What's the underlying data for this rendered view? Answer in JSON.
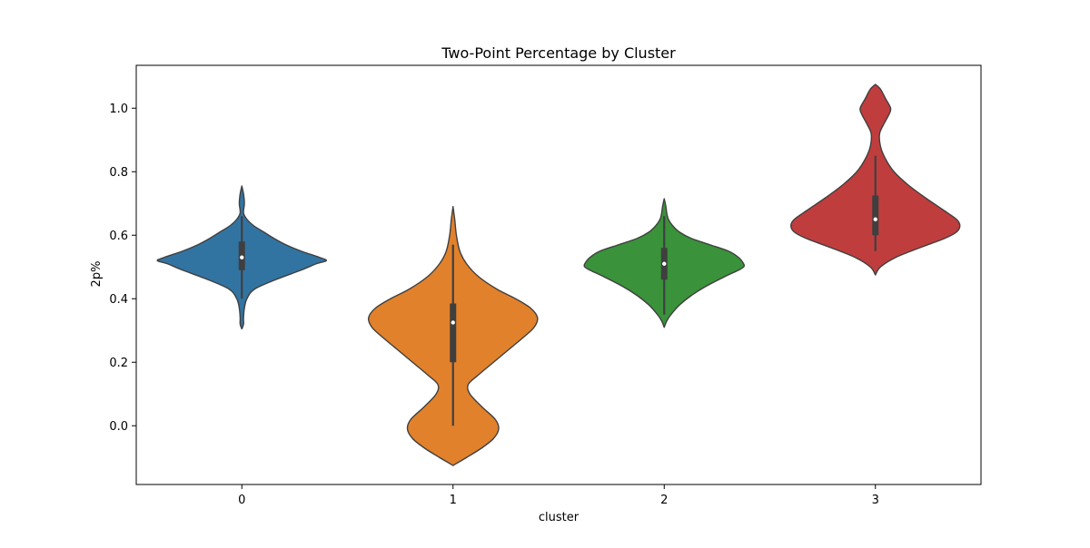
{
  "chart_data": {
    "type": "violin",
    "title": "Two-Point Percentage by Cluster",
    "xlabel": "cluster",
    "ylabel": "2p%",
    "categories": [
      "0",
      "1",
      "2",
      "3"
    ],
    "ylim": [
      -0.185,
      1.135
    ],
    "yticks": [
      0.0,
      0.2,
      0.4,
      0.6,
      0.8,
      1.0
    ],
    "ytick_labels": [
      "0.0",
      "0.2",
      "0.4",
      "0.6",
      "0.8",
      "1.0"
    ],
    "grid": false,
    "legend": "none",
    "violins": [
      {
        "category": "0",
        "color": "#3274a1",
        "min": 0.31,
        "q1": 0.49,
        "median": 0.53,
        "q3": 0.58,
        "max": 0.66,
        "whisker_low": 0.4,
        "whisker_high": 0.66,
        "density": [
          [
            0.305,
            0.0
          ],
          [
            0.32,
            0.02
          ],
          [
            0.34,
            0.02
          ],
          [
            0.37,
            0.03
          ],
          [
            0.4,
            0.06
          ],
          [
            0.43,
            0.15
          ],
          [
            0.46,
            0.4
          ],
          [
            0.49,
            0.7
          ],
          [
            0.51,
            0.88
          ],
          [
            0.52,
            1.0
          ],
          [
            0.53,
            0.92
          ],
          [
            0.55,
            0.7
          ],
          [
            0.57,
            0.52
          ],
          [
            0.59,
            0.38
          ],
          [
            0.61,
            0.26
          ],
          [
            0.63,
            0.14
          ],
          [
            0.65,
            0.06
          ],
          [
            0.67,
            0.02
          ],
          [
            0.7,
            0.03
          ],
          [
            0.73,
            0.02
          ],
          [
            0.755,
            0.0
          ]
        ]
      },
      {
        "category": "1",
        "color": "#e1812c",
        "min": 0.0,
        "q1": 0.2,
        "median": 0.325,
        "q3": 0.385,
        "max": 0.57,
        "whisker_low": 0.0,
        "whisker_high": 0.57,
        "density": [
          [
            -0.125,
            0.0
          ],
          [
            -0.1,
            0.16
          ],
          [
            -0.07,
            0.34
          ],
          [
            -0.04,
            0.48
          ],
          [
            -0.01,
            0.54
          ],
          [
            0.02,
            0.5
          ],
          [
            0.06,
            0.34
          ],
          [
            0.1,
            0.2
          ],
          [
            0.13,
            0.18
          ],
          [
            0.16,
            0.3
          ],
          [
            0.2,
            0.48
          ],
          [
            0.24,
            0.66
          ],
          [
            0.28,
            0.84
          ],
          [
            0.31,
            0.96
          ],
          [
            0.34,
            1.0
          ],
          [
            0.37,
            0.92
          ],
          [
            0.4,
            0.74
          ],
          [
            0.43,
            0.52
          ],
          [
            0.47,
            0.3
          ],
          [
            0.51,
            0.16
          ],
          [
            0.55,
            0.08
          ],
          [
            0.6,
            0.04
          ],
          [
            0.65,
            0.02
          ],
          [
            0.69,
            0.0
          ]
        ]
      },
      {
        "category": "2",
        "color": "#3a923a",
        "min": 0.31,
        "q1": 0.46,
        "median": 0.51,
        "q3": 0.56,
        "max": 0.71,
        "whisker_low": 0.35,
        "whisker_high": 0.66,
        "density": [
          [
            0.31,
            0.0
          ],
          [
            0.33,
            0.03
          ],
          [
            0.35,
            0.08
          ],
          [
            0.38,
            0.18
          ],
          [
            0.41,
            0.32
          ],
          [
            0.44,
            0.5
          ],
          [
            0.47,
            0.72
          ],
          [
            0.49,
            0.88
          ],
          [
            0.5,
            0.94
          ],
          [
            0.51,
            0.94
          ],
          [
            0.53,
            0.88
          ],
          [
            0.55,
            0.76
          ],
          [
            0.57,
            0.54
          ],
          [
            0.59,
            0.32
          ],
          [
            0.61,
            0.18
          ],
          [
            0.63,
            0.1
          ],
          [
            0.65,
            0.05
          ],
          [
            0.67,
            0.03
          ],
          [
            0.69,
            0.02
          ],
          [
            0.715,
            0.0
          ]
        ]
      },
      {
        "category": "3",
        "color": "#c03d3e",
        "min": 0.55,
        "q1": 0.6,
        "median": 0.65,
        "q3": 0.725,
        "max": 1.0,
        "whisker_low": 0.55,
        "whisker_high": 0.85,
        "density": [
          [
            0.475,
            0.0
          ],
          [
            0.5,
            0.06
          ],
          [
            0.53,
            0.24
          ],
          [
            0.56,
            0.52
          ],
          [
            0.59,
            0.82
          ],
          [
            0.61,
            0.96
          ],
          [
            0.63,
            1.0
          ],
          [
            0.65,
            0.96
          ],
          [
            0.68,
            0.8
          ],
          [
            0.72,
            0.58
          ],
          [
            0.76,
            0.38
          ],
          [
            0.8,
            0.22
          ],
          [
            0.84,
            0.12
          ],
          [
            0.88,
            0.06
          ],
          [
            0.92,
            0.05
          ],
          [
            0.95,
            0.1
          ],
          [
            0.98,
            0.16
          ],
          [
            1.0,
            0.18
          ],
          [
            1.03,
            0.12
          ],
          [
            1.06,
            0.06
          ],
          [
            1.075,
            0.0
          ]
        ]
      }
    ]
  }
}
